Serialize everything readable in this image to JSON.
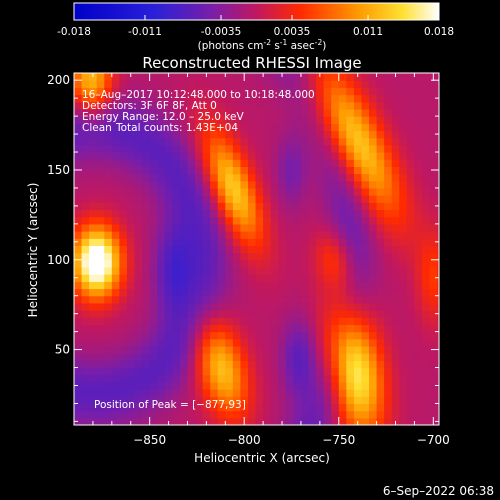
{
  "colorbar": {
    "ticks": [
      "-0.018",
      "-0.011",
      "-0.0035",
      "0.0035",
      "0.011",
      "0.018"
    ],
    "tick_values": [
      -0.018,
      -0.011,
      -0.0035,
      0.0035,
      0.011,
      0.018
    ],
    "range": [
      -0.018,
      0.018
    ],
    "units_main": "(photons cm",
    "units_exp1": "-2",
    "units_mid": " s",
    "units_exp2": "-1",
    "units_end": " asec",
    "units_exp3": "-2",
    "units_close": ")"
  },
  "chart_data": {
    "type": "heatmap",
    "title": "Reconstructed RHESSI Image",
    "xlabel": "Heliocentric X (arcsec)",
    "ylabel": "Heliocentric Y (arcsec)",
    "xlim": [
      -890,
      -697
    ],
    "ylim": [
      8,
      204
    ],
    "xticks": [
      -850,
      -800,
      -750,
      -700
    ],
    "yticks": [
      50,
      100,
      150,
      200
    ],
    "xtick_labels": [
      "−850",
      "−800",
      "−750",
      "−700"
    ],
    "ytick_labels": [
      "50",
      "100",
      "150",
      "200"
    ],
    "annotations": [
      "16–Aug–2017 10:12:48.000 to 10:18:48.000",
      "Detectors: 3F 6F 8F, Att 0",
      "Energy Range: 12.0 – 25.0 keV",
      "Clean",
      "Total counts: 1.43E+04"
    ],
    "peak_label": "Position of Peak = [−877,93]",
    "peak_position": [
      -877,
      93
    ],
    "sources": [
      {
        "x": -878,
        "y": 99,
        "value": 0.018
      },
      {
        "x": -807,
        "y": 139,
        "value": 0.012
      },
      {
        "x": -812,
        "y": 42,
        "value": 0.011
      },
      {
        "x": -741,
        "y": 168,
        "value": 0.012
      },
      {
        "x": -742,
        "y": 40,
        "value": 0.015
      },
      {
        "x": -880,
        "y": 200,
        "value": 0.011
      },
      {
        "x": -751,
        "y": 100,
        "value": 0.004
      }
    ]
  },
  "footer": {
    "date": "6–Sep–2022 06:38"
  }
}
